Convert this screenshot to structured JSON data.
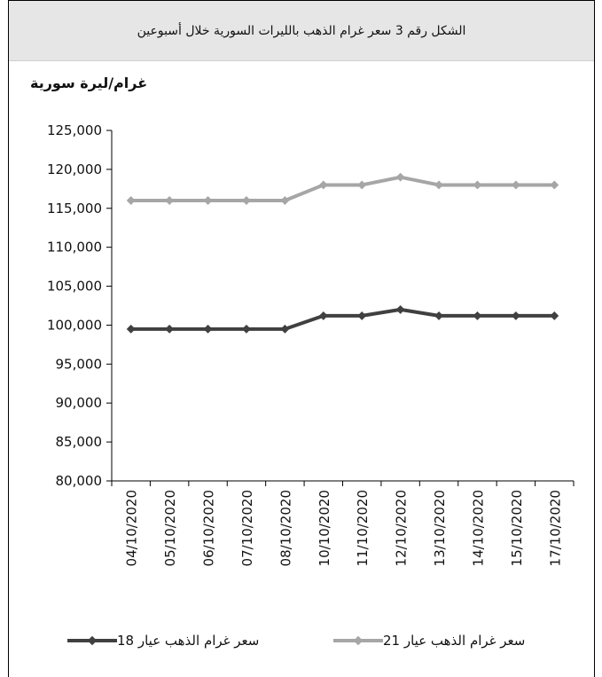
{
  "header": {
    "title": "الشكل رقم 3 سعر غرام الذهب بالليرات السورية خلال أسبوعين"
  },
  "chart_data": {
    "type": "line",
    "ylabel": "غرام/ليرة سورية",
    "ylim": [
      80000,
      125000
    ],
    "yticks": [
      "125,000",
      "120,000",
      "115,000",
      "110,000",
      "105,000",
      "100,000",
      "95,000",
      "90,000",
      "85,000",
      "80,000"
    ],
    "ytick_values": [
      125000,
      120000,
      115000,
      110000,
      105000,
      100000,
      95000,
      90000,
      85000,
      80000
    ],
    "categories": [
      "04/10/2020",
      "05/10/2020",
      "06/10/2020",
      "07/10/2020",
      "08/10/2020",
      "10/10/2020",
      "11/10/2020",
      "12/10/2020",
      "13/10/2020",
      "14/10/2020",
      "15/10/2020",
      "17/10/2020"
    ],
    "grid": false,
    "legend_position": "bottom",
    "series": [
      {
        "name": "سعر غرام الذهب عيار 21",
        "color": "#a6a6a6",
        "values": [
          116000,
          116000,
          116000,
          116000,
          116000,
          118000,
          118000,
          119000,
          118000,
          118000,
          118000,
          118000
        ]
      },
      {
        "name": "سعر غرام الذهب عيار 18",
        "color": "#404040",
        "values": [
          99500,
          99500,
          99500,
          99500,
          99500,
          101200,
          101200,
          102000,
          101200,
          101200,
          101200,
          101200
        ]
      }
    ]
  }
}
